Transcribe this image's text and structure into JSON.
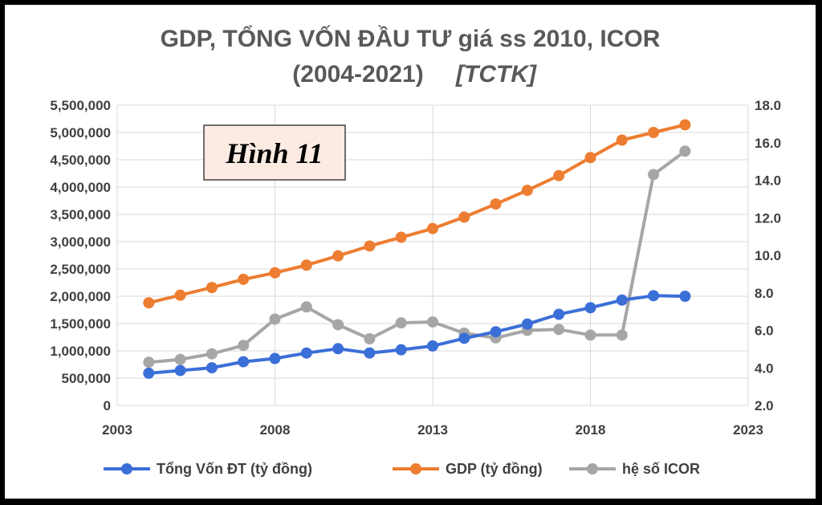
{
  "chart_data": {
    "type": "line",
    "title_line1": "GDP, TỔNG VỐN ĐẦU TƯ giá ss 2010, ICOR",
    "title_line2": "(2004-2021)",
    "title_source": "[TCTK]",
    "annotation": "Hình 11",
    "xlim": [
      2003,
      2023
    ],
    "x_ticks": [
      "2003",
      "2008",
      "2013",
      "2018",
      "2023"
    ],
    "y_left_lim": [
      0,
      5500000
    ],
    "y_left_ticks": [
      "0",
      "500,000",
      "1,000,000",
      "1,500,000",
      "2,000,000",
      "2,500,000",
      "3,000,000",
      "3,500,000",
      "4,000,000",
      "4,500,000",
      "5,000,000",
      "5,500,000"
    ],
    "y_right_lim": [
      2,
      18
    ],
    "y_right_ticks": [
      "2.0",
      "4.0",
      "6.0",
      "8.0",
      "10.0",
      "12.0",
      "14.0",
      "16.0",
      "18.0"
    ],
    "grid": true,
    "legend_position": "bottom",
    "x": [
      2004,
      2005,
      2006,
      2007,
      2008,
      2009,
      2010,
      2011,
      2012,
      2013,
      2014,
      2015,
      2016,
      2017,
      2018,
      2019,
      2020,
      2021
    ],
    "series": [
      {
        "name": "Tổng Vốn ĐT (tỷ đồng)",
        "axis": "left",
        "color": "#3B6FD8",
        "values": [
          590000,
          640000,
          690000,
          800000,
          860000,
          960000,
          1040000,
          960000,
          1020000,
          1090000,
          1230000,
          1350000,
          1490000,
          1670000,
          1790000,
          1930000,
          2010000,
          2000000
        ]
      },
      {
        "name": "GDP (tỷ đồng)",
        "axis": "left",
        "color": "#ED7D31",
        "values": [
          1880000,
          2020000,
          2160000,
          2310000,
          2430000,
          2570000,
          2740000,
          2920000,
          3080000,
          3240000,
          3450000,
          3690000,
          3940000,
          4210000,
          4540000,
          4860000,
          5000000,
          5140000
        ]
      },
      {
        "name": "hệ số ICOR",
        "axis": "right",
        "color": "#A6A6A6",
        "values": [
          4.3,
          4.45,
          4.75,
          5.2,
          6.6,
          7.25,
          6.3,
          5.55,
          6.4,
          6.45,
          5.85,
          5.6,
          6.0,
          6.05,
          5.75,
          5.75,
          14.3,
          15.55
        ]
      }
    ]
  }
}
